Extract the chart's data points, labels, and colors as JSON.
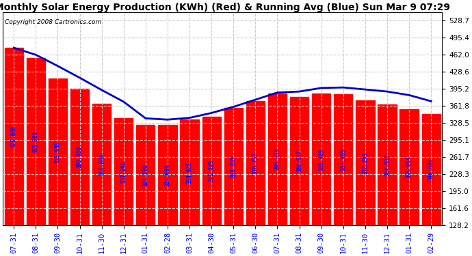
{
  "title": "Monthly Solar Energy Production (KWh) (Red) & Running Avg (Blue) Sun Mar 9 07:29",
  "copyright": "Copyright 2008 Cartronics.com",
  "categories": [
    "07-31",
    "08-31",
    "09-30",
    "10-31",
    "11-30",
    "12-31",
    "01-31",
    "02-28",
    "03-31",
    "04-30",
    "05-31",
    "06-30",
    "07-31",
    "08-31",
    "09-30",
    "10-31",
    "11-30",
    "12-31",
    "01-31",
    "02-29"
  ],
  "bar_values": [
    475.669,
    455.908,
    415.045,
    395.03,
    365.886,
    337.298,
    324.37,
    324.004,
    334.621,
    341.189,
    358.339,
    370.757,
    386.538,
    380.047,
    386.409,
    384.469,
    372.295,
    364.836,
    355.654,
    346.606
  ],
  "running_avg": [
    475.669,
    462.0,
    440.0,
    417.0,
    393.0,
    370.0,
    337.5,
    335.0,
    338.5,
    348.0,
    360.0,
    374.0,
    388.0,
    390.0,
    397.0,
    398.0,
    394.0,
    390.0,
    383.0,
    371.0
  ],
  "bar_color": "#FF0000",
  "line_color": "#0000CC",
  "background_color": "#FFFFFF",
  "grid_color": "#CCCCCC",
  "label_color": "#0000FF",
  "ylim_min": 128.2,
  "ylim_max": 545.0,
  "bar_bottom": 128.2,
  "yticks": [
    128.2,
    161.6,
    195.0,
    228.3,
    261.7,
    295.1,
    328.5,
    361.8,
    395.2,
    428.6,
    462.0,
    495.4,
    528.7
  ],
  "ytick_labels": [
    "128.2",
    "161.6",
    "195.0",
    "228.3",
    "261.7",
    "295.1",
    "328.5",
    "361.8",
    "395.2",
    "428.6",
    "462.0",
    "495.4",
    "528.7"
  ],
  "title_fontsize": 10,
  "copyright_fontsize": 6.5,
  "bar_label_fontsize": 5.5,
  "tick_fontsize": 7.5
}
